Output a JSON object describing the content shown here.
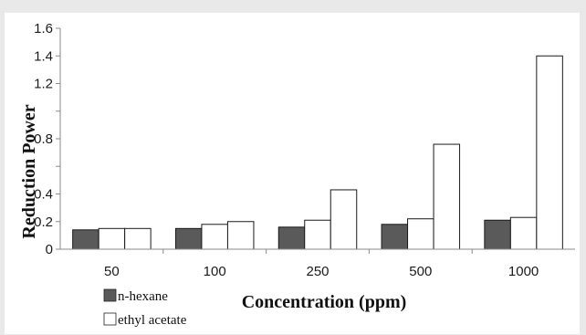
{
  "chart_data": {
    "type": "bar",
    "title": "",
    "xlabel": "Concentration (ppm)",
    "ylabel": "Reduction Power",
    "categories": [
      "50",
      "100",
      "250",
      "500",
      "1000"
    ],
    "ylim": [
      0,
      1.6
    ],
    "yticks": [
      "0",
      "0.2",
      "0.4",
      "",
      "0.8",
      "",
      "1.2",
      "1.4",
      "1.6"
    ],
    "grid": false,
    "legend_position": "bottom-left",
    "series": [
      {
        "name": "n-hexane",
        "color": "#5a5a5a",
        "values": [
          0.14,
          0.15,
          0.16,
          0.18,
          0.21
        ]
      },
      {
        "name": "",
        "color": "#ffffff",
        "values": [
          0.15,
          0.18,
          0.21,
          0.22,
          0.23
        ]
      },
      {
        "name": "ethyl acetate",
        "color": "#ffffff",
        "values": [
          0.15,
          0.2,
          0.43,
          0.76,
          1.4
        ]
      }
    ]
  }
}
